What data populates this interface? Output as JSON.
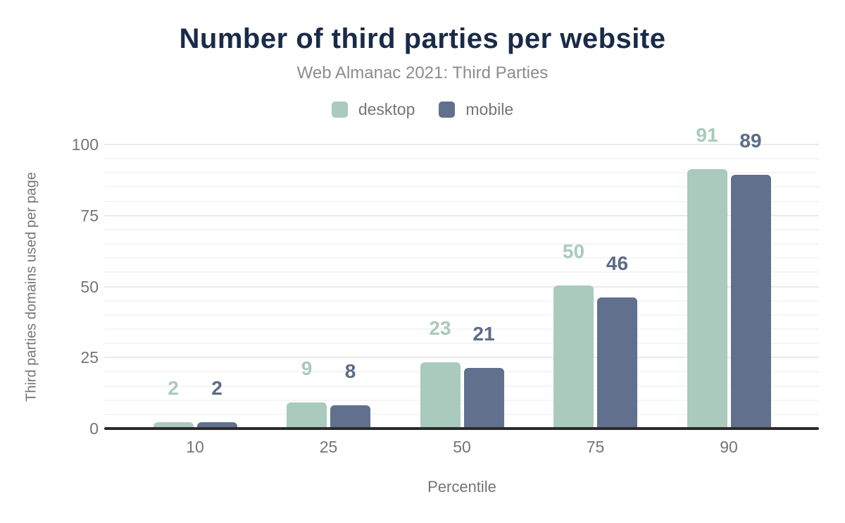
{
  "chart_data": {
    "type": "bar",
    "title": "Number of third parties per website",
    "subtitle": "Web Almanac 2021: Third Parties",
    "xlabel": "Percentile",
    "ylabel": "Third parties domains used per page",
    "categories": [
      "10",
      "25",
      "50",
      "75",
      "90"
    ],
    "series": [
      {
        "name": "desktop",
        "color": "#a9cabc",
        "label_color": "#a9cabc",
        "values": [
          2,
          9,
          23,
          50,
          91
        ]
      },
      {
        "name": "mobile",
        "color": "#61708c",
        "label_color": "#5c6c89",
        "values": [
          2,
          8,
          21,
          46,
          89
        ]
      }
    ],
    "y_ticks": [
      0,
      25,
      50,
      75,
      100
    ],
    "ylim": [
      0,
      100
    ],
    "minor_grid_step": 5,
    "grid": "on",
    "legend_position": "top",
    "data_labels": "above-bars"
  },
  "colors": {
    "title": "#1a2b49",
    "subtitle": "#8c8c8c",
    "axis_text": "#757575",
    "axis_line": "#2b2b2b",
    "grid_minor": "#f5f5f5",
    "grid_major": "#e9e9e9",
    "background": "#ffffff"
  }
}
